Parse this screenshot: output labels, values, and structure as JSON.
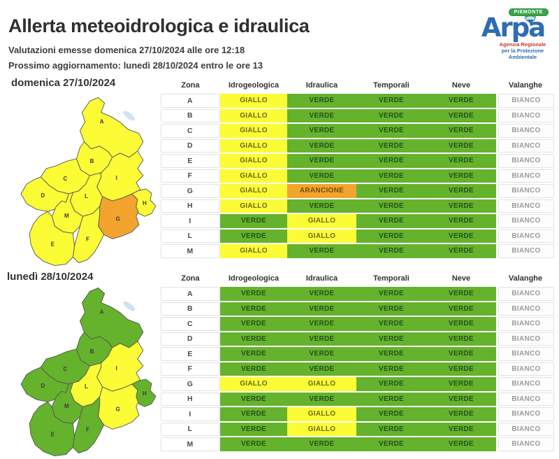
{
  "header": {
    "title": "Allerta meteoidrologica e idraulica",
    "issued": "Valutazioni emesse domenica 27/10/2024 alle ore 12:18",
    "next_update": "Prossimo aggiornamento: lunedì 28/10/2024 entro le ore 13"
  },
  "logo": {
    "name": "Arpa",
    "region": "PIEMONTE",
    "subtitle1": "Agenzia Regionale",
    "subtitle2": "per la Protezione Ambientale"
  },
  "colors": {
    "GIALLO": "#fbfb36",
    "VERDE": "#65b22d",
    "ARANCIONE": "#f2a42e",
    "BIANCO": "#fdfdfd"
  },
  "sections": [
    {
      "title": "domenica 27/10/2024",
      "columns": [
        "Zona",
        "Idrogeologica",
        "Idraulica",
        "Temporali",
        "Neve",
        "Valanghe"
      ],
      "rows": [
        {
          "zona": "A",
          "values": [
            "GIALLO",
            "VERDE",
            "VERDE",
            "VERDE",
            "BIANCO"
          ]
        },
        {
          "zona": "B",
          "values": [
            "GIALLO",
            "VERDE",
            "VERDE",
            "VERDE",
            "BIANCO"
          ]
        },
        {
          "zona": "C",
          "values": [
            "GIALLO",
            "VERDE",
            "VERDE",
            "VERDE",
            "BIANCO"
          ]
        },
        {
          "zona": "D",
          "values": [
            "GIALLO",
            "VERDE",
            "VERDE",
            "VERDE",
            "BIANCO"
          ]
        },
        {
          "zona": "E",
          "values": [
            "GIALLO",
            "VERDE",
            "VERDE",
            "VERDE",
            "BIANCO"
          ]
        },
        {
          "zona": "F",
          "values": [
            "GIALLO",
            "VERDE",
            "VERDE",
            "VERDE",
            "BIANCO"
          ]
        },
        {
          "zona": "G",
          "values": [
            "GIALLO",
            "ARANCIONE",
            "VERDE",
            "VERDE",
            "BIANCO"
          ]
        },
        {
          "zona": "H",
          "values": [
            "GIALLO",
            "VERDE",
            "VERDE",
            "VERDE",
            "BIANCO"
          ]
        },
        {
          "zona": "I",
          "values": [
            "VERDE",
            "GIALLO",
            "VERDE",
            "VERDE",
            "BIANCO"
          ]
        },
        {
          "zona": "L",
          "values": [
            "VERDE",
            "GIALLO",
            "VERDE",
            "VERDE",
            "BIANCO"
          ]
        },
        {
          "zona": "M",
          "values": [
            "GIALLO",
            "VERDE",
            "VERDE",
            "VERDE",
            "BIANCO"
          ]
        }
      ],
      "map_zones": {
        "A": "GIALLO",
        "B": "GIALLO",
        "C": "GIALLO",
        "D": "GIALLO",
        "E": "GIALLO",
        "F": "GIALLO",
        "G": "ARANCIONE",
        "H": "GIALLO",
        "I": "GIALLO",
        "L": "GIALLO",
        "M": "GIALLO"
      }
    },
    {
      "title": "lunedì 28/10/2024",
      "columns": [
        "Zona",
        "Idrogeologica",
        "Idraulica",
        "Temporali",
        "Neve",
        "Valanghe"
      ],
      "rows": [
        {
          "zona": "A",
          "values": [
            "VERDE",
            "VERDE",
            "VERDE",
            "VERDE",
            "BIANCO"
          ]
        },
        {
          "zona": "B",
          "values": [
            "VERDE",
            "VERDE",
            "VERDE",
            "VERDE",
            "BIANCO"
          ]
        },
        {
          "zona": "C",
          "values": [
            "VERDE",
            "VERDE",
            "VERDE",
            "VERDE",
            "BIANCO"
          ]
        },
        {
          "zona": "D",
          "values": [
            "VERDE",
            "VERDE",
            "VERDE",
            "VERDE",
            "BIANCO"
          ]
        },
        {
          "zona": "E",
          "values": [
            "VERDE",
            "VERDE",
            "VERDE",
            "VERDE",
            "BIANCO"
          ]
        },
        {
          "zona": "F",
          "values": [
            "VERDE",
            "VERDE",
            "VERDE",
            "VERDE",
            "BIANCO"
          ]
        },
        {
          "zona": "G",
          "values": [
            "GIALLO",
            "GIALLO",
            "VERDE",
            "VERDE",
            "BIANCO"
          ]
        },
        {
          "zona": "H",
          "values": [
            "VERDE",
            "VERDE",
            "VERDE",
            "VERDE",
            "BIANCO"
          ]
        },
        {
          "zona": "I",
          "values": [
            "VERDE",
            "GIALLO",
            "VERDE",
            "VERDE",
            "BIANCO"
          ]
        },
        {
          "zona": "L",
          "values": [
            "VERDE",
            "GIALLO",
            "VERDE",
            "VERDE",
            "BIANCO"
          ]
        },
        {
          "zona": "M",
          "values": [
            "VERDE",
            "VERDE",
            "VERDE",
            "VERDE",
            "BIANCO"
          ]
        }
      ],
      "map_zones": {
        "A": "VERDE",
        "B": "VERDE",
        "C": "VERDE",
        "D": "VERDE",
        "E": "VERDE",
        "F": "VERDE",
        "G": "GIALLO",
        "H": "VERDE",
        "I": "GIALLO",
        "L": "GIALLO",
        "M": "VERDE"
      }
    }
  ]
}
